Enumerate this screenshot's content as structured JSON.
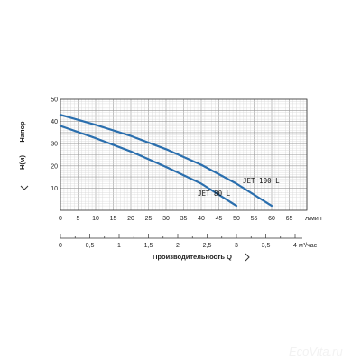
{
  "chart_data": {
    "type": "line",
    "ylabel": "Напор  H(м)",
    "ylabel_parts": [
      "Напор",
      "H(м)"
    ],
    "y_ticks": [
      10,
      20,
      30,
      40,
      50
    ],
    "ylim": [
      0,
      50
    ],
    "x_ticks": [
      0,
      5,
      10,
      15,
      20,
      25,
      30,
      35,
      40,
      45,
      50,
      55,
      60,
      65
    ],
    "xlim": [
      0,
      70
    ],
    "x_unit": "л/мин",
    "x2_ticks": [
      "0",
      "0,5",
      "1",
      "1,5",
      "2",
      "2,5",
      "3",
      "3,5",
      "4"
    ],
    "x2_values": [
      0,
      0.5,
      1,
      1.5,
      2,
      2.5,
      3,
      3.5,
      4
    ],
    "x2_unit": "м³/час",
    "xlabel": "Производительность Q",
    "grid": true,
    "series": [
      {
        "name": "JET 100 L",
        "x": [
          0,
          10,
          20,
          30,
          40,
          50,
          60
        ],
        "y": [
          43,
          38.5,
          33.5,
          27.5,
          20.5,
          12,
          2
        ]
      },
      {
        "name": "JET 80 L",
        "x": [
          0,
          10,
          20,
          30,
          40,
          50
        ],
        "y": [
          38,
          32.5,
          26.5,
          19.5,
          12,
          2
        ]
      }
    ]
  },
  "colors": {
    "line": "#2b6fae",
    "grid_major": "#9a9a9a",
    "grid_minor": "#d6d6d6",
    "axis": "#333333"
  },
  "icons": {
    "arrow": "chevron-right-icon"
  },
  "watermark": "EcoVita.ru"
}
